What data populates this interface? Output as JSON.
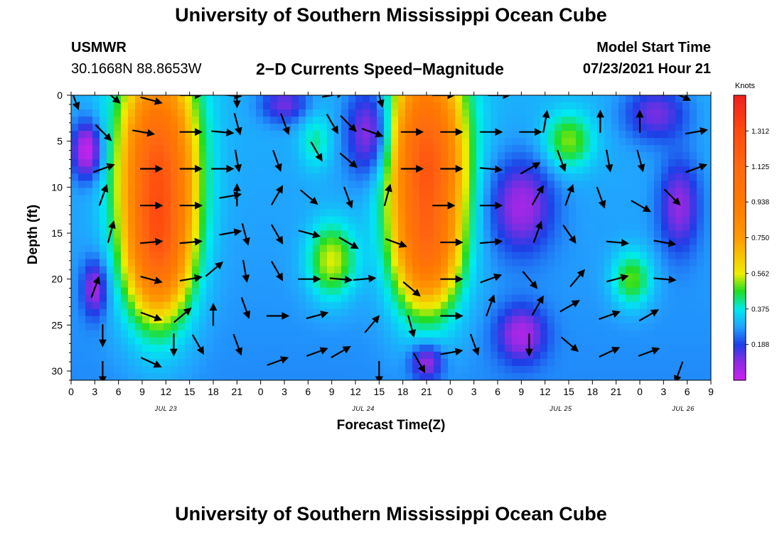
{
  "page": {
    "title_top": "University of Southern Mississippi Ocean Cube",
    "title_bottom": "University of Southern Mississippi Ocean Cube",
    "station_name": "USMWR",
    "station_coords": "30.1668N  88.8653W",
    "subtitle": "2−D Currents Speed−Magnitude",
    "model_start_label": "Model Start Time",
    "model_start_value": "07/23/2021 Hour 21"
  },
  "colors": {
    "magenta": "#cc22ee",
    "violet": "#8a2be2",
    "blue": "#1d3ee6",
    "lightblue": "#22a0ff",
    "cyan": "#00eaf0",
    "green": "#22dd22",
    "yellow": "#eeee00",
    "orange": "#ff7a00",
    "red": "#ff4a10",
    "arrow": "#000000",
    "axis": "#000000"
  },
  "chart_data": {
    "type": "heatmap",
    "title": "2−D Currents Speed−Magnitude",
    "xlabel": "Forecast Time(Z)",
    "ylabel": "Depth (ft)",
    "x_range_hours": [
      0,
      81
    ],
    "ylim": [
      0,
      31
    ],
    "y_inverted": true,
    "x_tick_hours": [
      0,
      3,
      6,
      9,
      12,
      15,
      18,
      21,
      24,
      27,
      30,
      33,
      36,
      39,
      42,
      45,
      48,
      51,
      54,
      57,
      60,
      63,
      66,
      69,
      72,
      75,
      78,
      81
    ],
    "x_tick_labels": [
      "0",
      "3",
      "6",
      "9",
      "12",
      "15",
      "18",
      "21",
      "0",
      "3",
      "6",
      "9",
      "12",
      "15",
      "18",
      "21",
      "0",
      "3",
      "6",
      "9",
      "12",
      "15",
      "18",
      "21",
      "0",
      "3",
      "6",
      "9"
    ],
    "date_labels": [
      {
        "hour": 12,
        "text": "JUL 23"
      },
      {
        "hour": 37,
        "text": "JUL 24"
      },
      {
        "hour": 62,
        "text": "JUL 25"
      },
      {
        "hour": 77.5,
        "text": "JUL 26"
      }
    ],
    "y_ticks": [
      0,
      5,
      10,
      15,
      20,
      25,
      30
    ],
    "y_tick_labels": [
      "0",
      "5",
      "10",
      "15",
      "20",
      "25",
      "30"
    ],
    "colorbar": {
      "title": "Knots",
      "min": 0,
      "max": 1.5,
      "ticks": [
        0.188,
        0.375,
        0.562,
        0.75,
        0.938,
        1.125,
        1.312
      ],
      "tick_labels": [
        "0.188",
        "0.375",
        "0.562",
        "0.750",
        "0.938",
        "1.125",
        "1.312"
      ],
      "stops": [
        {
          "v": 0.0,
          "c": "#cc22ee"
        },
        {
          "v": 0.1,
          "c": "#8a2be2"
        },
        {
          "v": 0.188,
          "c": "#1d3ee6"
        },
        {
          "v": 0.28,
          "c": "#22a0ff"
        },
        {
          "v": 0.375,
          "c": "#00eaf0"
        },
        {
          "v": 0.47,
          "c": "#22dd22"
        },
        {
          "v": 0.562,
          "c": "#eeee00"
        },
        {
          "v": 0.75,
          "c": "#ff9a00"
        },
        {
          "v": 0.938,
          "c": "#ff7a00"
        },
        {
          "v": 1.125,
          "c": "#ff6a10"
        },
        {
          "v": 1.312,
          "c": "#ff4a10"
        },
        {
          "v": 1.5,
          "c": "#ee2020"
        }
      ]
    },
    "speed_field": {
      "background": 0.3,
      "depth_gradient": -0.04,
      "features": [
        {
          "t": 11,
          "d": 9,
          "st": 4.5,
          "sd": 12,
          "a": 0.95
        },
        {
          "t": 11,
          "d": 18,
          "st": 3.5,
          "sd": 6,
          "a": 0.35
        },
        {
          "t": 45,
          "d": 8,
          "st": 4.5,
          "sd": 12,
          "a": 0.95
        },
        {
          "t": 45,
          "d": 18,
          "st": 3.5,
          "sd": 5,
          "a": 0.3
        },
        {
          "t": 33,
          "d": 18,
          "st": 3,
          "sd": 4,
          "a": 0.28
        },
        {
          "t": 31,
          "d": 5,
          "st": 2,
          "sd": 3,
          "a": 0.12
        },
        {
          "t": 63,
          "d": 5,
          "st": 3,
          "sd": 3,
          "a": 0.22
        },
        {
          "t": 71,
          "d": 20,
          "st": 2.5,
          "sd": 3,
          "a": 0.22
        },
        {
          "t": 2,
          "d": 6,
          "st": 1.8,
          "sd": 3,
          "a": -0.3
        },
        {
          "t": 3,
          "d": 21,
          "st": 1.5,
          "sd": 3,
          "a": -0.22
        },
        {
          "t": 38,
          "d": 4,
          "st": 3,
          "sd": 5,
          "a": -0.25
        },
        {
          "t": 27,
          "d": 1,
          "st": 3,
          "sd": 2,
          "a": -0.18
        },
        {
          "t": 57,
          "d": 12,
          "st": 4,
          "sd": 5,
          "a": -0.22
        },
        {
          "t": 57,
          "d": 26,
          "st": 3,
          "sd": 3,
          "a": -0.22
        },
        {
          "t": 45,
          "d": 29,
          "st": 2,
          "sd": 2,
          "a": -0.22
        },
        {
          "t": 77,
          "d": 12,
          "st": 2.5,
          "sd": 5,
          "a": -0.2
        },
        {
          "t": 74,
          "d": 2,
          "st": 4,
          "sd": 3,
          "a": -0.18
        }
      ]
    },
    "vectors": [
      {
        "t": 0.4,
        "d": 0.3,
        "angle": 70
      },
      {
        "t": 5,
        "d": 0,
        "angle": 40
      },
      {
        "t": 10,
        "d": 0.5,
        "angle": 15
      },
      {
        "t": 15,
        "d": 0,
        "angle": 0
      },
      {
        "t": 20,
        "d": 0,
        "angle": 5
      },
      {
        "t": 21,
        "d": 0,
        "angle": 90
      },
      {
        "t": 33,
        "d": 0,
        "angle": -10
      },
      {
        "t": 39,
        "d": 0,
        "angle": 75
      },
      {
        "t": 47,
        "d": 0,
        "angle": 0
      },
      {
        "t": 54,
        "d": 0,
        "angle": 0
      },
      {
        "t": 77,
        "d": 0,
        "angle": 25
      },
      {
        "t": 4,
        "d": 4,
        "angle": 45
      },
      {
        "t": 9,
        "d": 4,
        "angle": 10
      },
      {
        "t": 15,
        "d": 4,
        "angle": 0
      },
      {
        "t": 19,
        "d": 4,
        "angle": 5
      },
      {
        "t": 21,
        "d": 3,
        "angle": 75
      },
      {
        "t": 27,
        "d": 3,
        "angle": 70
      },
      {
        "t": 33,
        "d": 3,
        "angle": 60
      },
      {
        "t": 35,
        "d": 3,
        "angle": 45
      },
      {
        "t": 38,
        "d": 4,
        "angle": 20
      },
      {
        "t": 43,
        "d": 4,
        "angle": 0
      },
      {
        "t": 48,
        "d": 4,
        "angle": 0
      },
      {
        "t": 53,
        "d": 4,
        "angle": 0
      },
      {
        "t": 58,
        "d": 4,
        "angle": 0
      },
      {
        "t": 60,
        "d": 3,
        "angle": -80
      },
      {
        "t": 67,
        "d": 3,
        "angle": -90
      },
      {
        "t": 72,
        "d": 3,
        "angle": -90
      },
      {
        "t": 79,
        "d": 4,
        "angle": -10
      },
      {
        "t": 4,
        "d": 8,
        "angle": -20
      },
      {
        "t": 10,
        "d": 8,
        "angle": 0
      },
      {
        "t": 15,
        "d": 8,
        "angle": 0
      },
      {
        "t": 19,
        "d": 8,
        "angle": 0
      },
      {
        "t": 21,
        "d": 7,
        "angle": 80
      },
      {
        "t": 26,
        "d": 7,
        "angle": 70
      },
      {
        "t": 31,
        "d": 6,
        "angle": 60
      },
      {
        "t": 35,
        "d": 7,
        "angle": 40
      },
      {
        "t": 43,
        "d": 8,
        "angle": 0
      },
      {
        "t": 48,
        "d": 8,
        "angle": 0
      },
      {
        "t": 53,
        "d": 8,
        "angle": 5
      },
      {
        "t": 58,
        "d": 8,
        "angle": -30
      },
      {
        "t": 62,
        "d": 7,
        "angle": 70
      },
      {
        "t": 68,
        "d": 7,
        "angle": 80
      },
      {
        "t": 72,
        "d": 7,
        "angle": 75
      },
      {
        "t": 79,
        "d": 8,
        "angle": -20
      },
      {
        "t": 4,
        "d": 11,
        "angle": -70
      },
      {
        "t": 10,
        "d": 12,
        "angle": 0
      },
      {
        "t": 15,
        "d": 12,
        "angle": 0
      },
      {
        "t": 20,
        "d": 11,
        "angle": -10
      },
      {
        "t": 21,
        "d": 11,
        "angle": -90
      },
      {
        "t": 26,
        "d": 11,
        "angle": -60
      },
      {
        "t": 30,
        "d": 11,
        "angle": 40
      },
      {
        "t": 35,
        "d": 11,
        "angle": 70
      },
      {
        "t": 40,
        "d": 11,
        "angle": -75
      },
      {
        "t": 47,
        "d": 12,
        "angle": 0
      },
      {
        "t": 53,
        "d": 12,
        "angle": 0
      },
      {
        "t": 59,
        "d": 11,
        "angle": -60
      },
      {
        "t": 63,
        "d": 11,
        "angle": -70
      },
      {
        "t": 67,
        "d": 11,
        "angle": 70
      },
      {
        "t": 72,
        "d": 12,
        "angle": 30
      },
      {
        "t": 76,
        "d": 11,
        "angle": 45
      },
      {
        "t": 5,
        "d": 15,
        "angle": -75
      },
      {
        "t": 10,
        "d": 16,
        "angle": -5
      },
      {
        "t": 15,
        "d": 16,
        "angle": -5
      },
      {
        "t": 20,
        "d": 15,
        "angle": -10
      },
      {
        "t": 22,
        "d": 15,
        "angle": 75
      },
      {
        "t": 26,
        "d": 15,
        "angle": 60
      },
      {
        "t": 30,
        "d": 15,
        "angle": 15
      },
      {
        "t": 35,
        "d": 16,
        "angle": 30
      },
      {
        "t": 41,
        "d": 16,
        "angle": 20
      },
      {
        "t": 48,
        "d": 16,
        "angle": 0
      },
      {
        "t": 53,
        "d": 16,
        "angle": -5
      },
      {
        "t": 59,
        "d": 15,
        "angle": -70
      },
      {
        "t": 63,
        "d": 15,
        "angle": 55
      },
      {
        "t": 69,
        "d": 16,
        "angle": 5
      },
      {
        "t": 75,
        "d": 16,
        "angle": 10
      },
      {
        "t": 3,
        "d": 21,
        "angle": -70
      },
      {
        "t": 10,
        "d": 20,
        "angle": 15
      },
      {
        "t": 15,
        "d": 20,
        "angle": -10
      },
      {
        "t": 18,
        "d": 19,
        "angle": -40
      },
      {
        "t": 22,
        "d": 19,
        "angle": 80
      },
      {
        "t": 26,
        "d": 19,
        "angle": 60
      },
      {
        "t": 30,
        "d": 20,
        "angle": 0
      },
      {
        "t": 34,
        "d": 20,
        "angle": 5
      },
      {
        "t": 37,
        "d": 20,
        "angle": -5
      },
      {
        "t": 43,
        "d": 21,
        "angle": 40
      },
      {
        "t": 48,
        "d": 20,
        "angle": 0
      },
      {
        "t": 53,
        "d": 20,
        "angle": -20
      },
      {
        "t": 58,
        "d": 20,
        "angle": 50
      },
      {
        "t": 64,
        "d": 20,
        "angle": -50
      },
      {
        "t": 69,
        "d": 20,
        "angle": -15
      },
      {
        "t": 75,
        "d": 20,
        "angle": 5
      },
      {
        "t": 4,
        "d": 26,
        "angle": 90
      },
      {
        "t": 10,
        "d": 24,
        "angle": 20
      },
      {
        "t": 14,
        "d": 24,
        "angle": -40
      },
      {
        "t": 18,
        "d": 24,
        "angle": -90
      },
      {
        "t": 22,
        "d": 23,
        "angle": 70
      },
      {
        "t": 26,
        "d": 24,
        "angle": 0
      },
      {
        "t": 31,
        "d": 24,
        "angle": -15
      },
      {
        "t": 38,
        "d": 25,
        "angle": -50
      },
      {
        "t": 43,
        "d": 25,
        "angle": 75
      },
      {
        "t": 48,
        "d": 24,
        "angle": 0
      },
      {
        "t": 53,
        "d": 23,
        "angle": -70
      },
      {
        "t": 59,
        "d": 23,
        "angle": -60
      },
      {
        "t": 63,
        "d": 23,
        "angle": -30
      },
      {
        "t": 68,
        "d": 24,
        "angle": -20
      },
      {
        "t": 73,
        "d": 24,
        "angle": -30
      },
      {
        "t": 4,
        "d": 30,
        "angle": 90
      },
      {
        "t": 10,
        "d": 29,
        "angle": 25
      },
      {
        "t": 13,
        "d": 27,
        "angle": 90
      },
      {
        "t": 16,
        "d": 27,
        "angle": 60
      },
      {
        "t": 21,
        "d": 27,
        "angle": 70
      },
      {
        "t": 26,
        "d": 29,
        "angle": -20
      },
      {
        "t": 31,
        "d": 28,
        "angle": -20
      },
      {
        "t": 34,
        "d": 28,
        "angle": -30
      },
      {
        "t": 39,
        "d": 30,
        "angle": 90
      },
      {
        "t": 44,
        "d": 29,
        "angle": 60
      },
      {
        "t": 48,
        "d": 28,
        "angle": -10
      },
      {
        "t": 51,
        "d": 27,
        "angle": 70
      },
      {
        "t": 58,
        "d": 27,
        "angle": 90
      },
      {
        "t": 63,
        "d": 27,
        "angle": 40
      },
      {
        "t": 68,
        "d": 28,
        "angle": -25
      },
      {
        "t": 73,
        "d": 28,
        "angle": -20
      },
      {
        "t": 77,
        "d": 30,
        "angle": 110
      }
    ]
  }
}
